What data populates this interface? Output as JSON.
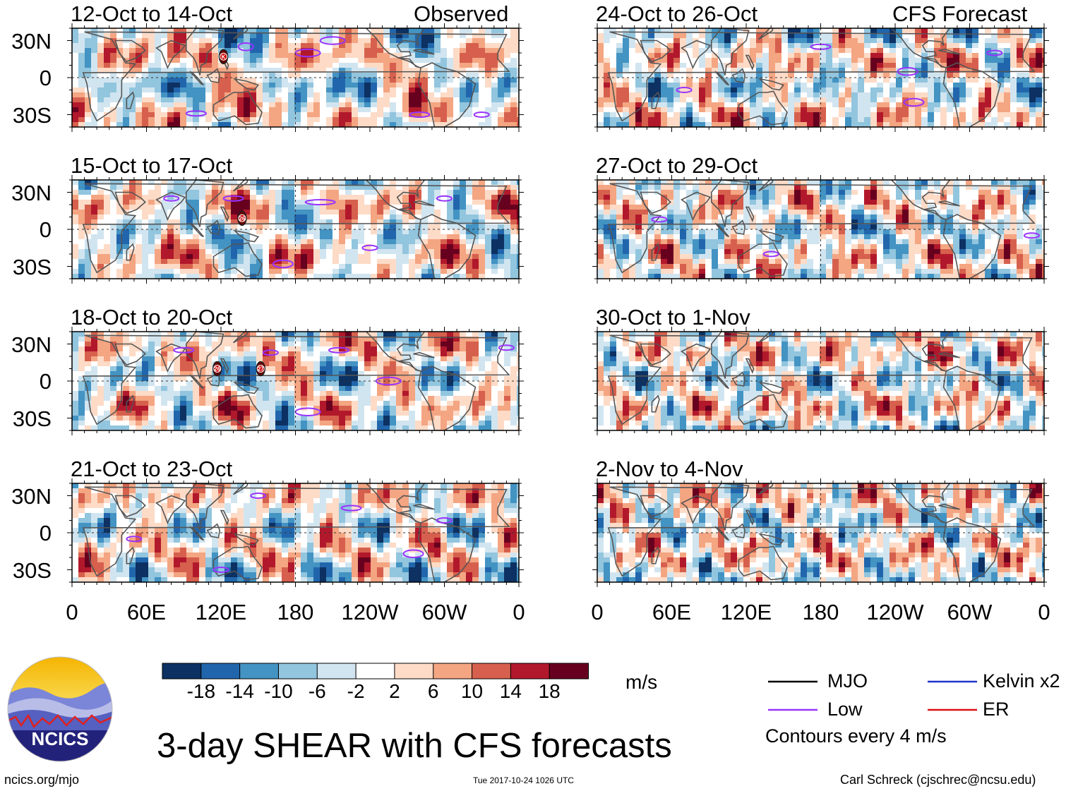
{
  "chart_data": {
    "type": "heatmap",
    "title": "3-day SHEAR with CFS forecasts",
    "variable": "SHEAR",
    "units": "m/s",
    "source_label": "ncics.org/mjo",
    "timestamp": "Tue 2017-10-24 1026 UTC",
    "author": "Carl Schreck (cjschrec@ncsu.edu)",
    "logo_text": "NCICS",
    "contour_note": "Contours every 4 m/s",
    "columns": [
      {
        "header": "Observed",
        "source": "observed"
      },
      {
        "header": "CFS Forecast",
        "source": "forecast"
      }
    ],
    "panels": [
      {
        "title": "12-Oct to 14-Oct",
        "column": 0,
        "row": 0,
        "storm_labels": [
          "K"
        ]
      },
      {
        "title": "15-Oct to 17-Oct",
        "column": 0,
        "row": 1,
        "storm_labels": [
          "26"
        ]
      },
      {
        "title": "18-Oct to 20-Oct",
        "column": 0,
        "row": 2,
        "storm_labels": [
          "26",
          "27"
        ]
      },
      {
        "title": "21-Oct to 23-Oct",
        "column": 0,
        "row": 3,
        "storm_labels": []
      },
      {
        "title": "24-Oct to 26-Oct",
        "column": 1,
        "row": 0,
        "storm_labels": []
      },
      {
        "title": "27-Oct to 29-Oct",
        "column": 1,
        "row": 1,
        "storm_labels": []
      },
      {
        "title": "30-Oct to 1-Nov",
        "column": 1,
        "row": 2,
        "storm_labels": []
      },
      {
        "title": "2-Nov to 4-Nov",
        "column": 1,
        "row": 3,
        "storm_labels": []
      }
    ],
    "y_ticks": [
      "30N",
      "0",
      "30S"
    ],
    "y_tick_values": [
      30,
      0,
      -30
    ],
    "x_ticks": [
      "0",
      "60E",
      "120E",
      "180",
      "120W",
      "60W",
      "0"
    ],
    "x_tick_values": [
      0,
      60,
      120,
      180,
      240,
      300,
      360
    ],
    "xlim": [
      0,
      360
    ],
    "ylim": [
      -40,
      40
    ],
    "colorbar": {
      "ticks": [
        "-18",
        "-14",
        "-10",
        "-6",
        "-2",
        "2",
        "6",
        "10",
        "14",
        "18"
      ],
      "bounds": [
        -18,
        -14,
        -10,
        -6,
        -2,
        2,
        6,
        10,
        14,
        18
      ],
      "colors": [
        "#0c3162",
        "#2166ac",
        "#4393c3",
        "#92c5de",
        "#d1e5f0",
        "#ffffff",
        "#fddbc7",
        "#f4a582",
        "#d6604d",
        "#b2182b",
        "#67001f"
      ]
    },
    "legend": [
      {
        "label": "MJO",
        "color": "#000000"
      },
      {
        "label": "Kelvin x2",
        "color": "#2233cc"
      },
      {
        "label": "Low",
        "color": "#9933ff"
      },
      {
        "label": "ER",
        "color": "#dd1111"
      }
    ]
  }
}
